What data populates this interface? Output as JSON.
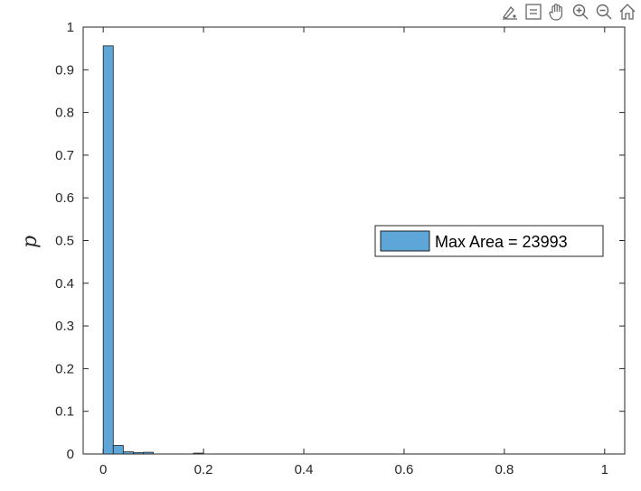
{
  "toolbar": {
    "icons": [
      "brush-icon",
      "legend-icon",
      "pan-icon",
      "zoom-in-icon",
      "zoom-out-icon",
      "home-icon"
    ]
  },
  "chart_data": {
    "type": "bar",
    "title": "",
    "xlabel": "",
    "ylabel": "p",
    "xlim": [
      -0.04,
      1.04
    ],
    "ylim": [
      0,
      1
    ],
    "xticks": [
      0,
      0.2,
      0.4,
      0.6,
      0.8,
      1
    ],
    "xtick_labels": [
      "0",
      "0.2",
      "0.4",
      "0.6",
      "0.8",
      "1"
    ],
    "yticks": [
      0,
      0.1,
      0.2,
      0.3,
      0.4,
      0.5,
      0.6,
      0.7,
      0.8,
      0.9,
      1
    ],
    "ytick_labels": [
      "0",
      "0.1",
      "0.2",
      "0.3",
      "0.4",
      "0.5",
      "0.6",
      "0.7",
      "0.8",
      "0.9",
      "1"
    ],
    "bin_width": 0.02,
    "bins": [
      {
        "x0": 0.0,
        "value": 0.956
      },
      {
        "x0": 0.02,
        "value": 0.02
      },
      {
        "x0": 0.04,
        "value": 0.005
      },
      {
        "x0": 0.06,
        "value": 0.003
      },
      {
        "x0": 0.08,
        "value": 0.004
      },
      {
        "x0": 0.18,
        "value": 0.002
      }
    ],
    "legend": {
      "label": "Max Area = 23993",
      "location": "right"
    },
    "colors": {
      "bar_fill": "#5ea6d7",
      "bar_edge": "#1e1e1e",
      "axis": "#262626"
    },
    "grid": false
  }
}
